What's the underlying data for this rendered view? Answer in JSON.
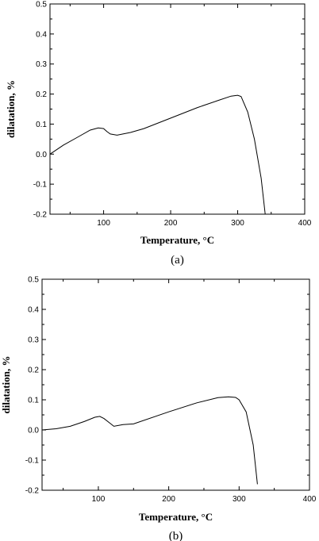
{
  "chart_data": [
    {
      "type": "line",
      "caption": "(a)",
      "xlabel": "Temperature, °C",
      "ylabel": "dilatation, %",
      "xlim": [
        20,
        400
      ],
      "ylim": [
        -0.2,
        0.5
      ],
      "xticks": [
        "100",
        "200",
        "300",
        "400"
      ],
      "yticks": [
        "-0.2",
        "-0.1",
        "0.0",
        "0.1",
        "0.2",
        "0.3",
        "0.4",
        "0.5"
      ],
      "x": [
        20,
        40,
        60,
        80,
        92,
        100,
        105,
        110,
        120,
        140,
        160,
        200,
        240,
        270,
        290,
        300,
        305,
        315,
        325,
        335,
        341
      ],
      "y": [
        0.0,
        0.03,
        0.055,
        0.08,
        0.087,
        0.085,
        0.075,
        0.067,
        0.063,
        0.072,
        0.085,
        0.12,
        0.155,
        0.178,
        0.193,
        0.196,
        0.192,
        0.14,
        0.05,
        -0.08,
        -0.2
      ]
    },
    {
      "type": "line",
      "caption": "(b)",
      "xlabel": "Temperature, °C",
      "ylabel": "dilatation, %",
      "xlim": [
        20,
        400
      ],
      "ylim": [
        -0.2,
        0.5
      ],
      "xticks": [
        "100",
        "200",
        "300",
        "400"
      ],
      "yticks": [
        "-0.2",
        "-0.1",
        "0.0",
        "0.1",
        "0.2",
        "0.3",
        "0.4",
        "0.5"
      ],
      "x": [
        20,
        40,
        60,
        80,
        95,
        102,
        108,
        115,
        122,
        135,
        150,
        200,
        240,
        270,
        285,
        295,
        300,
        310,
        320,
        326
      ],
      "y": [
        0.0,
        0.004,
        0.012,
        0.028,
        0.042,
        0.045,
        0.038,
        0.025,
        0.012,
        0.018,
        0.02,
        0.06,
        0.09,
        0.107,
        0.11,
        0.108,
        0.1,
        0.06,
        -0.05,
        -0.18
      ]
    }
  ]
}
